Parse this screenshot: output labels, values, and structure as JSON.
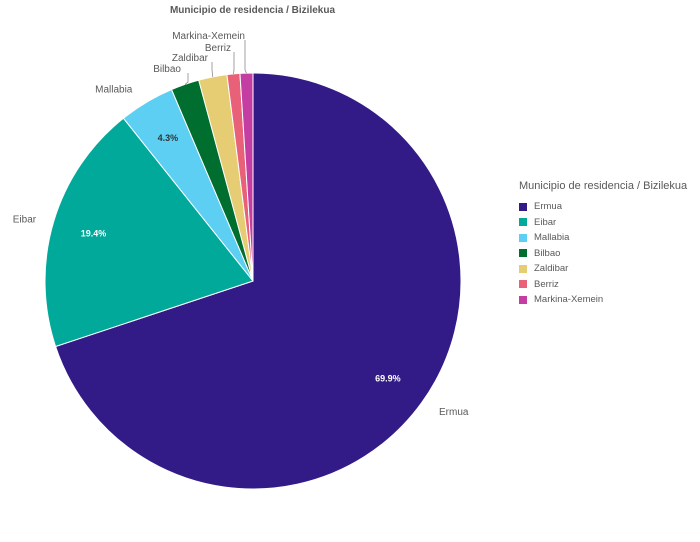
{
  "chart_data": {
    "type": "pie",
    "title": "Municipio de residencia / Bizilekua",
    "legend_title": "Municipio de residencia / Bizilekua",
    "legend_position": "right",
    "slices": [
      {
        "label": "Ermua",
        "value": 69.9,
        "display": "69.9%",
        "color": "#321a87"
      },
      {
        "label": "Eibar",
        "value": 19.4,
        "display": "19.4%",
        "color": "#00a99a"
      },
      {
        "label": "Mallabia",
        "value": 4.3,
        "display": "4.3%",
        "color": "#5ccff2"
      },
      {
        "label": "Bilbao",
        "value": 2.2,
        "display": "",
        "color": "#006e2e"
      },
      {
        "label": "Zaldibar",
        "value": 2.2,
        "display": "",
        "color": "#e6cd73"
      },
      {
        "label": "Berriz",
        "value": 1.0,
        "display": "",
        "color": "#e86178"
      },
      {
        "label": "Markina-Xemein",
        "value": 1.0,
        "display": "",
        "color": "#c43da3"
      }
    ]
  }
}
